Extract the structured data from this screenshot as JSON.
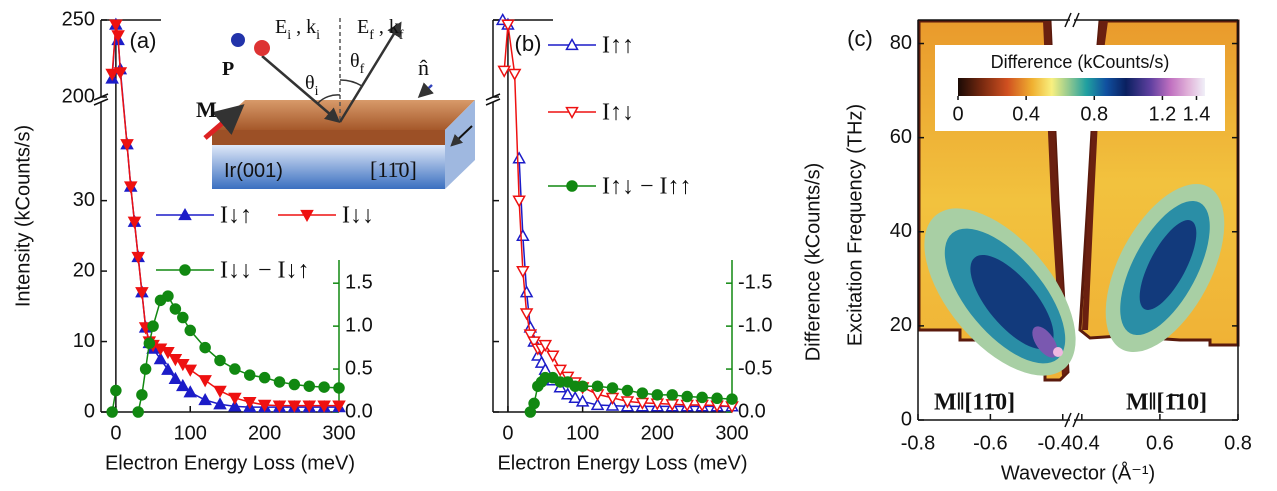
{
  "chart_data": [
    {
      "type": "line",
      "label": "(a)",
      "xlabel": "Electron Energy Loss (meV)",
      "ylabel": "Intensity (kCounts/s)",
      "xlim": [
        -20,
        300
      ],
      "xticks": [
        0,
        100,
        200,
        300
      ],
      "ylim": [
        0,
        250
      ],
      "ybreak": [
        44,
        200
      ],
      "yticks": [
        0,
        10,
        20,
        30,
        200,
        250
      ],
      "y2lim": [
        0,
        1.77
      ],
      "y2ticks": [
        {
          "value": 0,
          "label": "0.0"
        },
        0.5,
        {
          "value": 1,
          "label": "1.0"
        },
        1.5
      ],
      "y2color": "#118811",
      "zero_line": true,
      "x": [
        -5,
        0,
        3,
        6,
        15,
        20,
        25,
        30,
        35,
        40,
        45,
        50,
        60,
        70,
        80,
        90,
        100,
        120,
        140,
        160,
        180,
        200,
        220,
        240,
        260,
        280,
        300
      ],
      "series": [
        {
          "name": "I↓↑",
          "color": "#1c1cc8",
          "marker": "triangle-up",
          "filled": true,
          "values": [
            212,
            247,
            237,
            218,
            38,
            32,
            27,
            22,
            17,
            12,
            9.8,
            9,
            7.5,
            6,
            4.7,
            3.7,
            2.8,
            1.7,
            1.1,
            0.8,
            0.7,
            0.7,
            0.7,
            0.7,
            0.7,
            0.7,
            0.7
          ]
        },
        {
          "name": "I↓↓",
          "color": "#ee1111",
          "marker": "triangle-down",
          "filled": true,
          "values": [
            215,
            247,
            240,
            216,
            38,
            32,
            27,
            22,
            17,
            12,
            10,
            9.5,
            9,
            8.5,
            7.5,
            6.8,
            6,
            4.5,
            3,
            2,
            1.4,
            1,
            0.9,
            0.9,
            0.9,
            0.9,
            0.9
          ]
        },
        {
          "name": "I↓↓ − I↓↑",
          "color": "#118811",
          "marker": "circle",
          "filled": true,
          "axis": "y2",
          "values": [
            0,
            0.25,
            null,
            null,
            null,
            null,
            null,
            0,
            0.2,
            0.5,
            0.8,
            1.0,
            1.3,
            1.35,
            1.2,
            1.1,
            0.95,
            0.75,
            0.6,
            0.5,
            0.43,
            0.4,
            0.35,
            0.32,
            0.3,
            0.29,
            0.28
          ]
        }
      ],
      "annotations": [
        {
          "parts": [
            "E",
            "i",
            " , k",
            "i"
          ]
        },
        {
          "parts": [
            "E",
            "f",
            " , k",
            "f"
          ]
        },
        {
          "parts": [
            "θ",
            "i"
          ]
        },
        {
          "parts": [
            "θ",
            "f"
          ]
        },
        {
          "parts": [
            "P"
          ]
        },
        {
          "parts": [
            "M"
          ]
        },
        {
          "parts": [
            "n̂"
          ]
        },
        {
          "parts": [
            "Ir(001)"
          ]
        },
        {
          "parts": [
            "[11̄0]"
          ]
        }
      ]
    },
    {
      "type": "line",
      "label": "(b)",
      "xlabel": "Electron Energy Loss (meV)",
      "y2label": "Difference (kCounts/s)",
      "xlim": [
        -20,
        300
      ],
      "xticks": [
        0,
        100,
        200,
        300
      ],
      "ylim": [
        0,
        250
      ],
      "ybreak": [
        44,
        200
      ],
      "yticks": [
        0,
        10,
        20,
        30,
        200,
        250
      ],
      "ytick_labels": false,
      "y2lim": [
        0,
        -1.77
      ],
      "y2ticks": [
        {
          "value": 0,
          "label": "0.0"
        },
        -0.5,
        {
          "value": -1,
          "label": "-1.0"
        },
        -1.5
      ],
      "y2color": "#118811",
      "zero_line": true,
      "x": [
        -7,
        -5,
        0,
        9,
        15,
        20,
        25,
        30,
        35,
        40,
        45,
        50,
        60,
        70,
        80,
        90,
        100,
        120,
        140,
        160,
        180,
        200,
        220,
        240,
        260,
        280,
        300
      ],
      "series": [
        {
          "name": "I↑↑",
          "color": "#1c1cc8",
          "marker": "triangle-up",
          "filled": false,
          "values": [
            250,
            null,
            247,
            null,
            36,
            25,
            17,
            12,
            10,
            8,
            7,
            6,
            4.5,
            3.5,
            2.5,
            2,
            1.5,
            1,
            0.9,
            0.8,
            0.8,
            0.8,
            0.8,
            0.8,
            0.8,
            0.8,
            0.8
          ]
        },
        {
          "name": "I↑↓",
          "color": "#ee1111",
          "marker": "triangle-down",
          "filled": false,
          "values": [
            null,
            217,
            247,
            215,
            30,
            20,
            14,
            11,
            10,
            9,
            9,
            9.5,
            8,
            6,
            5,
            4.2,
            3.5,
            2.5,
            2,
            1.5,
            1.3,
            1.2,
            1.1,
            1,
            1,
            0.9,
            0.8
          ]
        },
        {
          "name": "I↑↓ − I↑↑",
          "color": "#118811",
          "marker": "circle",
          "filled": true,
          "axis": "y2",
          "values": [
            null,
            null,
            null,
            null,
            null,
            null,
            null,
            0,
            -0.1,
            -0.3,
            -0.35,
            -0.4,
            -0.4,
            -0.35,
            -0.35,
            -0.3,
            -0.3,
            -0.3,
            -0.28,
            -0.25,
            -0.22,
            -0.2,
            -0.2,
            -0.18,
            -0.17,
            -0.16,
            -0.15
          ]
        }
      ]
    },
    {
      "type": "heatmap",
      "label": "(c)",
      "xlabel": "Wavevector (Å⁻¹)",
      "ylabel": "Excitation Frequency (THz)",
      "xlim": [
        -0.8,
        0.8
      ],
      "xbreak": [
        -0.38,
        0.38
      ],
      "xticks": [
        -0.8,
        -0.6,
        -0.4,
        0.4,
        0.6,
        0.8
      ],
      "ylim": [
        0,
        85
      ],
      "yticks": [
        0,
        20,
        40,
        60,
        80
      ],
      "colorbar": {
        "label": "Difference (kCounts/s)",
        "lim": [
          0,
          1.45
        ],
        "ticks": [
          0,
          0.4,
          0.8,
          1.2,
          1.4
        ]
      },
      "annotations": [
        "M‖[11̄0]",
        "M‖[1̄10]"
      ]
    }
  ]
}
